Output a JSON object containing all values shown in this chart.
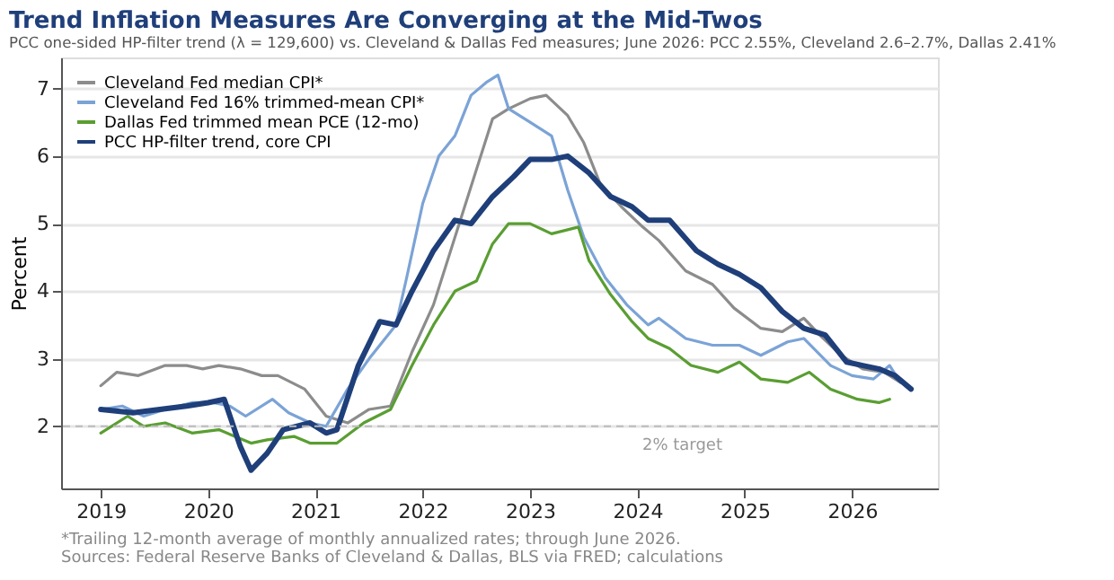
{
  "chart_data": {
    "type": "line",
    "title": "Trend Inflation Measures Are Converging at the Mid-Twos",
    "subtitle": "PCC one-sided HP-filter trend (λ = 129,600) vs. Cleveland & Dallas Fed measures; June 2026: PCC 2.55%, Cleveland 2.6–2.7%, Dallas 2.41%",
    "ylabel": "Percent",
    "xlim": [
      2018.63,
      2026.8
    ],
    "xticks": [
      2019,
      2020,
      2021,
      2022,
      2023,
      2024,
      2025,
      2026
    ],
    "ylim": [
      1.08,
      7.46
    ],
    "yticks": [
      2,
      3,
      4,
      5,
      6,
      7
    ],
    "grid": "y",
    "legend": "top left",
    "line_style": "solid",
    "marker": "none",
    "series": [
      {
        "name": "Cleveland Fed median CPI*",
        "color": "#8c8c8c",
        "x": [
          2019.0,
          2019.15,
          2019.35,
          2019.6,
          2019.8,
          2019.95,
          2020.1,
          2020.3,
          2020.5,
          2020.65,
          2020.9,
          2021.1,
          2021.3,
          2021.5,
          2021.7,
          2021.9,
          2022.1,
          2022.3,
          2022.5,
          2022.65,
          2022.8,
          2023.0,
          2023.15,
          2023.35,
          2023.5,
          2023.65,
          2023.85,
          2024.05,
          2024.2,
          2024.45,
          2024.7,
          2024.9,
          2025.15,
          2025.35,
          2025.55,
          2025.7,
          2025.9,
          2026.1,
          2026.3,
          2026.45
        ],
        "values": [
          2.6,
          2.8,
          2.75,
          2.9,
          2.9,
          2.85,
          2.9,
          2.85,
          2.75,
          2.75,
          2.55,
          2.15,
          2.05,
          2.25,
          2.3,
          3.1,
          3.8,
          4.8,
          5.8,
          6.55,
          6.7,
          6.85,
          6.9,
          6.6,
          6.2,
          5.6,
          5.25,
          4.95,
          4.75,
          4.3,
          4.1,
          3.75,
          3.45,
          3.4,
          3.6,
          3.35,
          3.05,
          2.85,
          2.8,
          2.65
        ]
      },
      {
        "name": "Cleveland Fed 16% trimmed-mean CPI*",
        "color": "#7ba3d6",
        "x": [
          2019.0,
          2019.2,
          2019.4,
          2019.6,
          2019.85,
          2020.05,
          2020.2,
          2020.35,
          2020.6,
          2020.75,
          2020.95,
          2021.1,
          2021.3,
          2021.5,
          2021.75,
          2021.85,
          2022.0,
          2022.15,
          2022.3,
          2022.45,
          2022.6,
          2022.7,
          2022.8,
          2023.0,
          2023.2,
          2023.35,
          2023.5,
          2023.7,
          2023.9,
          2024.1,
          2024.2,
          2024.45,
          2024.7,
          2024.95,
          2025.15,
          2025.4,
          2025.55,
          2025.8,
          2026.0,
          2026.2,
          2026.35,
          2026.45
        ],
        "values": [
          2.25,
          2.3,
          2.15,
          2.25,
          2.35,
          2.35,
          2.3,
          2.15,
          2.4,
          2.2,
          2.05,
          2.0,
          2.55,
          3.0,
          3.5,
          4.2,
          5.3,
          6.0,
          6.3,
          6.9,
          7.1,
          7.2,
          6.7,
          6.5,
          6.3,
          5.5,
          4.8,
          4.2,
          3.8,
          3.5,
          3.6,
          3.3,
          3.2,
          3.2,
          3.05,
          3.25,
          3.3,
          2.9,
          2.75,
          2.7,
          2.9,
          2.65
        ]
      },
      {
        "name": "Dallas Fed trimmed mean PCE (12-mo)",
        "color": "#5a9e32",
        "x": [
          2019.0,
          2019.25,
          2019.4,
          2019.6,
          2019.85,
          2020.1,
          2020.4,
          2020.55,
          2020.8,
          2020.95,
          2021.2,
          2021.45,
          2021.7,
          2021.9,
          2022.1,
          2022.3,
          2022.5,
          2022.65,
          2022.8,
          2023.0,
          2023.2,
          2023.45,
          2023.55,
          2023.75,
          2023.95,
          2024.1,
          2024.3,
          2024.5,
          2024.75,
          2024.95,
          2025.15,
          2025.4,
          2025.6,
          2025.8,
          2026.05,
          2026.25,
          2026.35
        ],
        "values": [
          1.9,
          2.15,
          2.0,
          2.05,
          1.9,
          1.95,
          1.75,
          1.8,
          1.85,
          1.75,
          1.75,
          2.05,
          2.25,
          2.9,
          3.5,
          4.0,
          4.15,
          4.7,
          5.0,
          5.0,
          4.85,
          4.95,
          4.45,
          3.95,
          3.55,
          3.3,
          3.15,
          2.9,
          2.8,
          2.95,
          2.7,
          2.65,
          2.8,
          2.55,
          2.4,
          2.35,
          2.4
        ]
      },
      {
        "name": "PCC HP-filter trend, core CPI",
        "color": "#1f3f7a",
        "x": [
          2019.0,
          2019.3,
          2019.55,
          2019.8,
          2020.0,
          2020.15,
          2020.3,
          2020.4,
          2020.55,
          2020.7,
          2020.95,
          2021.1,
          2021.2,
          2021.4,
          2021.6,
          2021.75,
          2021.9,
          2022.1,
          2022.3,
          2022.45,
          2022.65,
          2022.85,
          2023.0,
          2023.2,
          2023.35,
          2023.55,
          2023.75,
          2023.95,
          2024.1,
          2024.3,
          2024.55,
          2024.75,
          2024.95,
          2025.15,
          2025.35,
          2025.55,
          2025.75,
          2025.95,
          2026.1,
          2026.25,
          2026.4,
          2026.55
        ],
        "values": [
          2.25,
          2.2,
          2.25,
          2.3,
          2.35,
          2.4,
          1.7,
          1.35,
          1.6,
          1.95,
          2.05,
          1.9,
          1.95,
          2.9,
          3.55,
          3.5,
          4.0,
          4.6,
          5.05,
          5.0,
          5.4,
          5.7,
          5.95,
          5.95,
          6.0,
          5.75,
          5.4,
          5.25,
          5.05,
          5.05,
          4.6,
          4.4,
          4.25,
          4.05,
          3.7,
          3.45,
          3.35,
          2.95,
          2.9,
          2.85,
          2.75,
          2.55
        ]
      }
    ],
    "ref_lines": [
      {
        "axis": "y",
        "value": 2,
        "label": "2% target",
        "color": "#bbbbbb",
        "line_style": "dashed"
      }
    ],
    "annotations": [
      "*Trailing 12-month average of monthly annualized rates; through June 2026.",
      "Sources: Federal Reserve Banks of Cleveland & Dallas, BLS via FRED; calculations"
    ]
  }
}
